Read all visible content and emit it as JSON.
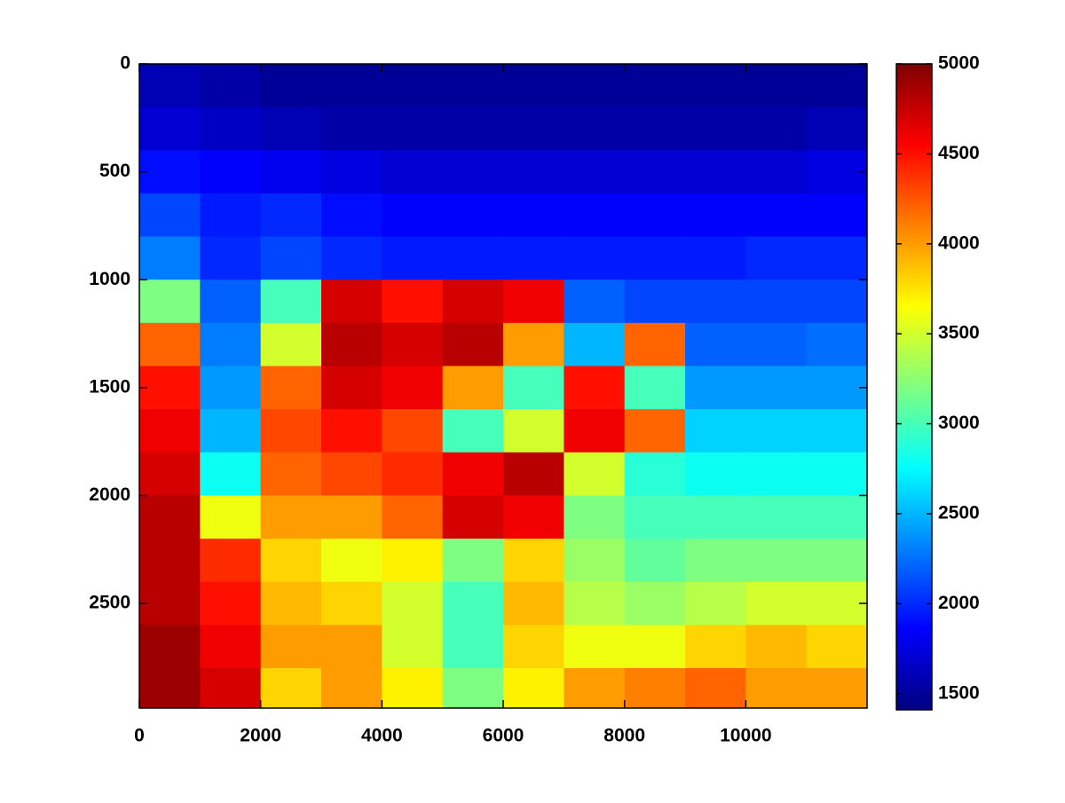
{
  "chart_data": {
    "type": "heatmap",
    "colormap": "jet",
    "y_inverted": true,
    "x": [
      500,
      1500,
      2500,
      3500,
      4500,
      5500,
      6500,
      7500,
      8500,
      9500,
      10500,
      11500
    ],
    "y": [
      100,
      300,
      500,
      700,
      900,
      1100,
      1300,
      1500,
      1700,
      1900,
      2100,
      2300,
      2500,
      2700,
      2900
    ],
    "z": [
      [
        1600,
        1550,
        1500,
        1500,
        1500,
        1500,
        1500,
        1500,
        1500,
        1500,
        1500,
        1500
      ],
      [
        1700,
        1650,
        1600,
        1550,
        1550,
        1550,
        1550,
        1550,
        1550,
        1550,
        1550,
        1600
      ],
      [
        1900,
        1850,
        1800,
        1750,
        1700,
        1700,
        1700,
        1700,
        1700,
        1700,
        1700,
        1750
      ],
      [
        2100,
        1950,
        2000,
        1900,
        1850,
        1850,
        1850,
        1850,
        1850,
        1850,
        1850,
        1850
      ],
      [
        2300,
        2000,
        2100,
        2000,
        1950,
        1950,
        1950,
        1950,
        1950,
        1950,
        2000,
        2000
      ],
      [
        3200,
        2200,
        3000,
        4700,
        4500,
        4700,
        4600,
        2200,
        2100,
        2100,
        2100,
        2100
      ],
      [
        4200,
        2300,
        3500,
        4800,
        4700,
        4800,
        4000,
        2500,
        4200,
        2200,
        2200,
        2250
      ],
      [
        4500,
        2400,
        4200,
        4700,
        4600,
        4000,
        3000,
        4500,
        3000,
        2400,
        2400,
        2400
      ],
      [
        4600,
        2500,
        4300,
        4500,
        4300,
        3000,
        3500,
        4600,
        4200,
        2600,
        2600,
        2600
      ],
      [
        4700,
        2800,
        4200,
        4300,
        4400,
        4600,
        4800,
        3500,
        2900,
        2800,
        2800,
        2800
      ],
      [
        4800,
        3600,
        4000,
        4000,
        4200,
        4700,
        4600,
        3200,
        3000,
        3000,
        3000,
        3000
      ],
      [
        4800,
        4400,
        3800,
        3600,
        3700,
        3200,
        3800,
        3300,
        3100,
        3200,
        3200,
        3200
      ],
      [
        4800,
        4500,
        3900,
        3800,
        3500,
        3000,
        3900,
        3400,
        3300,
        3400,
        3500,
        3500
      ],
      [
        4900,
        4600,
        4000,
        4000,
        3500,
        3000,
        3800,
        3600,
        3600,
        3800,
        3900,
        3800
      ],
      [
        4900,
        4700,
        3800,
        4000,
        3700,
        3200,
        3700,
        4000,
        4100,
        4200,
        4000,
        4000
      ]
    ],
    "xlim": [
      0,
      12000
    ],
    "xticks": [
      0,
      2000,
      4000,
      6000,
      8000,
      10000
    ],
    "ylim": [
      0,
      2985
    ],
    "yticks": [
      0,
      500,
      1000,
      1500,
      2000,
      2500
    ],
    "clim": [
      1410,
      5000
    ],
    "cticks": [
      1500,
      2000,
      2500,
      3000,
      3500,
      4000,
      4500,
      5000
    ]
  }
}
